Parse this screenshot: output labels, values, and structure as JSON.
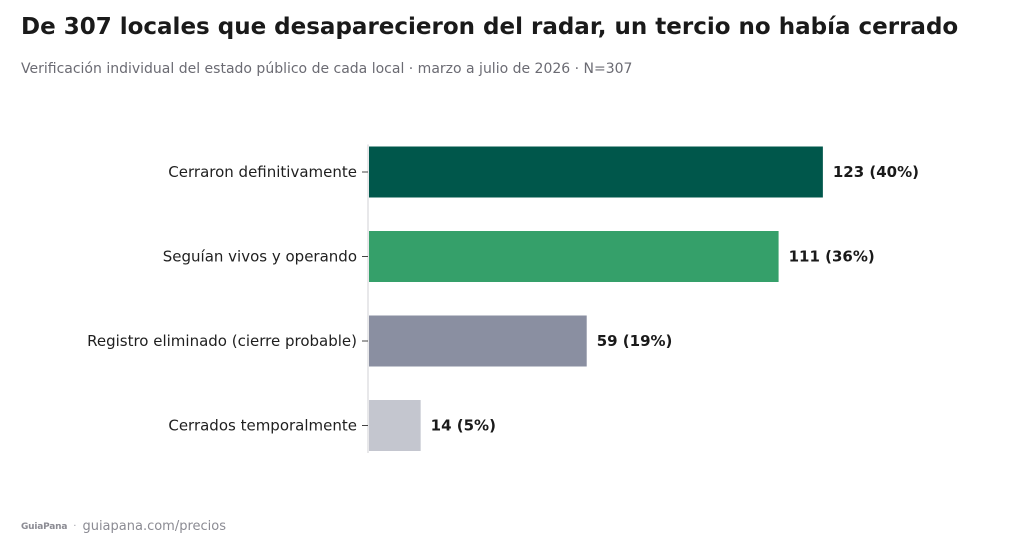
{
  "title": "De 307 locales que desaparecieron del radar, un tercio no había cerrado",
  "subtitle": "Verificación individual del estado público de cada local · marzo a julio de 2026 · N=307",
  "footer": {
    "logo": "GuiaPana",
    "separator": "·",
    "source": "guiapana.com/precios"
  },
  "chart_data": {
    "type": "bar",
    "orientation": "horizontal",
    "categories": [
      "Cerraron definitivamente",
      "Seguían vivos y operando",
      "Registro eliminado (cierre probable)",
      "Cerrados temporalmente"
    ],
    "values": [
      123,
      111,
      59,
      14
    ],
    "data_labels": [
      "123 (40%)",
      "111 (36%)",
      "59 (19%)",
      "14 (5%)"
    ],
    "colors": [
      "#00574b",
      "#35a06a",
      "#8a8fa1",
      "#c4c6cf"
    ],
    "xlim": [
      0,
      130
    ],
    "grid": false,
    "legend": "none"
  }
}
